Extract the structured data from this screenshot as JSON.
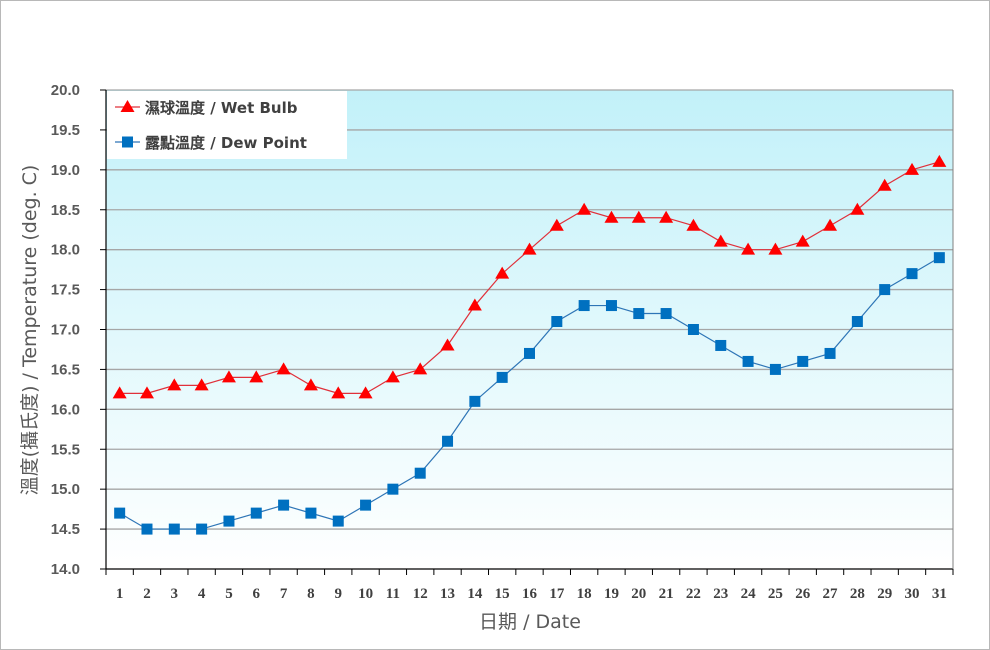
{
  "chart_data": {
    "type": "line",
    "title": "",
    "xlabel": "日期 / Date",
    "ylabel": "溫度(攝氏度) / Temperature (deg. C)",
    "ylim": [
      14.0,
      20.0
    ],
    "yticks": [
      "14.0",
      "14.5",
      "15.0",
      "15.5",
      "16.0",
      "16.5",
      "17.0",
      "17.5",
      "18.0",
      "18.5",
      "19.0",
      "19.5",
      "20.0"
    ],
    "grid": true,
    "legend_position": "top-left",
    "categories": [
      "1",
      "2",
      "3",
      "4",
      "5",
      "6",
      "7",
      "8",
      "9",
      "10",
      "11",
      "12",
      "13",
      "14",
      "15",
      "16",
      "17",
      "18",
      "19",
      "20",
      "21",
      "22",
      "23",
      "24",
      "25",
      "26",
      "27",
      "28",
      "29",
      "30",
      "31"
    ],
    "series": [
      {
        "name": "濕球溫度 / Wet Bulb",
        "marker": "triangle",
        "color": "#ff0000",
        "line_color": "#e0303a",
        "values": [
          16.2,
          16.2,
          16.3,
          16.3,
          16.4,
          16.4,
          16.5,
          16.3,
          16.2,
          16.2,
          16.4,
          16.5,
          16.8,
          17.3,
          17.7,
          18.0,
          18.3,
          18.5,
          18.4,
          18.4,
          18.4,
          18.3,
          18.1,
          18.0,
          18.0,
          18.1,
          18.3,
          18.5,
          18.8,
          19.0,
          19.1
        ]
      },
      {
        "name": "露點溫度 / Dew Point",
        "marker": "square",
        "color": "#0070c0",
        "line_color": "#2e75b6",
        "values": [
          14.7,
          14.5,
          14.5,
          14.5,
          14.6,
          14.7,
          14.8,
          14.7,
          14.6,
          14.8,
          15.0,
          15.2,
          15.6,
          16.1,
          16.4,
          16.7,
          17.1,
          17.3,
          17.3,
          17.2,
          17.2,
          17.0,
          16.8,
          16.6,
          16.5,
          16.6,
          16.7,
          17.1,
          17.5,
          17.7,
          17.9
        ]
      }
    ]
  }
}
